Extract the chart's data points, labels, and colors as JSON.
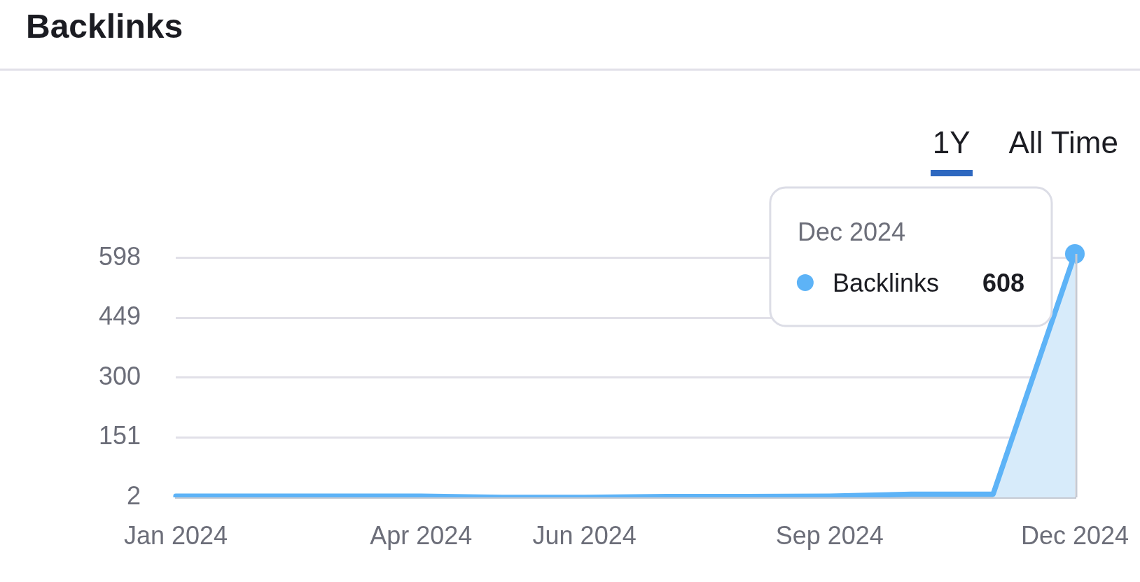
{
  "chart_data": {
    "type": "line",
    "title": "Backlinks",
    "categories": [
      "Jan 2024",
      null,
      null,
      "Apr 2024",
      null,
      "Jun 2024",
      null,
      null,
      "Sep 2024",
      null,
      null,
      "Dec 2024"
    ],
    "series": [
      {
        "name": "Backlinks",
        "color": "#5db3f7",
        "values": [
          5,
          5,
          5,
          5,
          2,
          2,
          4,
          4,
          5,
          10,
          10,
          608
        ],
        "value_labels": [
          null,
          null,
          null,
          null,
          null,
          null,
          null,
          null,
          null,
          null,
          null,
          "608"
        ]
      },
      {
        "type": "area",
        "color": "#d7ebfa",
        "values": [
          null,
          null,
          null,
          null,
          null,
          null,
          null,
          null,
          null,
          null,
          10,
          608
        ]
      }
    ],
    "ylim": [
      2,
      608
    ],
    "yticks": [
      2,
      151,
      300,
      449,
      598
    ],
    "grid": "y",
    "ref_lines": [
      {
        "axis": "x",
        "value": "Dec 2024",
        "color": "#c5cad3"
      }
    ],
    "annotations": [
      "Dec 2024",
      "1Y",
      "All Time"
    ]
  }
}
